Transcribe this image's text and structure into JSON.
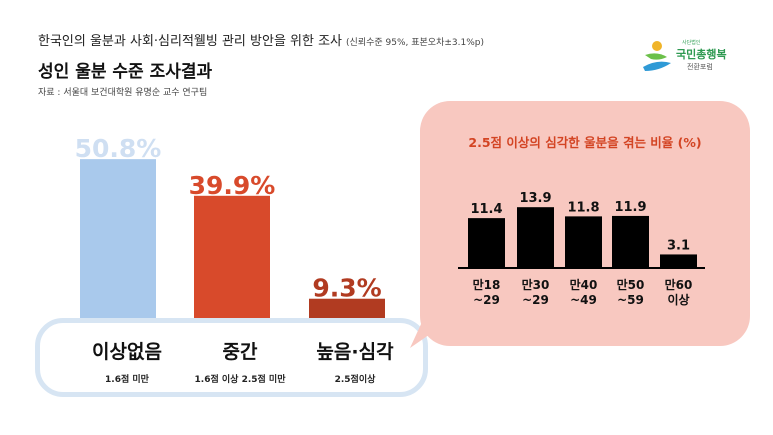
{
  "header": {
    "survey_title": "한국인의 울분과 사회·심리적웰빙 관리 방안을 위한 조사",
    "survey_note": "(신뢰수준 95%, 표본오차±3.1%p)",
    "headline": "성인 울분 수준 조사결과",
    "source": "자료 : 서울대 보건대학원 유명순 교수 연구팀"
  },
  "logo": {
    "small_text": "사단법인",
    "name": "국민총행복",
    "sub": "전환포럼",
    "icon": "person-leaf-icon"
  },
  "colors": {
    "none_bar": "#a9c9ec",
    "none_label": "#cfdff2",
    "mid_bar": "#d84a2b",
    "mid_label": "#d84a2b",
    "high_bar": "#b13b21",
    "high_label": "#b13b21",
    "inset_bg": "#f8c8c0",
    "inset_title": "#d34423",
    "inset_bar": "#000000",
    "panel_border": "#d7e5f3"
  },
  "chart_data": [
    {
      "type": "bar",
      "title": "",
      "categories": [
        "이상없음",
        "중간",
        "높음·심각"
      ],
      "category_subtitles": [
        "1.6점 미만",
        "1.6점 이상 2.5점 미만",
        "2.5점이상"
      ],
      "values": [
        50.8,
        39.9,
        9.3
      ],
      "value_labels": [
        "50.8%",
        "39.9%",
        "9.3%"
      ],
      "unit": "%",
      "ylim": [
        0,
        55
      ],
      "grid": false,
      "legend": "none"
    },
    {
      "type": "bar",
      "title": "2.5점 이상의 심각한 울분을 겪는 비율 (%)",
      "categories": [
        [
          "만18",
          "~29"
        ],
        [
          "만30",
          "~29"
        ],
        [
          "만40",
          "~49"
        ],
        [
          "만50",
          "~59"
        ],
        [
          "만60",
          "이상"
        ]
      ],
      "values": [
        11.4,
        13.9,
        11.8,
        11.9,
        3.1
      ],
      "value_labels": [
        "11.4",
        "13.9",
        "11.8",
        "11.9",
        "3.1"
      ],
      "unit": "%",
      "ylim": [
        0,
        16
      ],
      "grid": false,
      "legend": "none"
    }
  ]
}
